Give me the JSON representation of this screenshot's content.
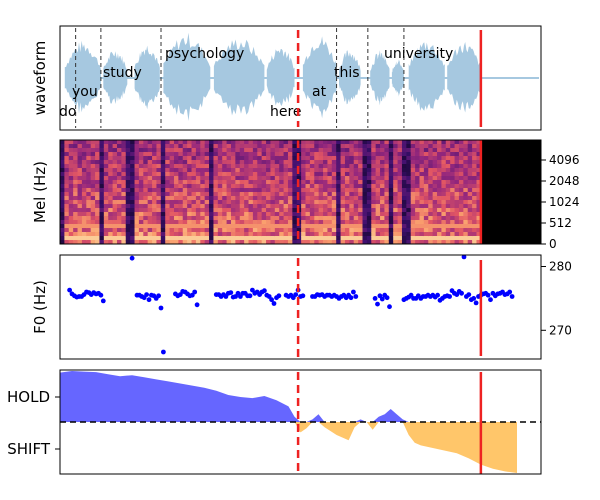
{
  "chart_data": [
    {
      "type": "area",
      "ylabel": "waveform",
      "x_range": [
        0,
        4.0
      ],
      "words": [
        {
          "text": "do",
          "start": 0.0,
          "end": 0.13
        },
        {
          "text": "you",
          "start": 0.13,
          "end": 0.34
        },
        {
          "text": "study",
          "start": 0.34,
          "end": 0.84
        },
        {
          "text": "psychology",
          "start": 0.84,
          "end": 1.98
        },
        {
          "text": "here",
          "start": 1.98,
          "end": 2.3
        },
        {
          "text": "at",
          "start": 2.3,
          "end": 2.56
        },
        {
          "text": "this",
          "start": 2.56,
          "end": 2.86
        },
        {
          "text": "university",
          "start": 2.86,
          "end": 3.5
        }
      ],
      "word_boundaries": [
        0.13,
        0.34,
        0.84,
        2.3,
        2.56,
        2.86
      ],
      "dashed_marker_x": 1.98,
      "solid_marker_x": 3.5,
      "color": "#a6c8e0"
    },
    {
      "type": "heatmap",
      "ylabel": "Mel (Hz)",
      "y_ticks": [
        "0",
        "512",
        "1024",
        "2048",
        "4096"
      ],
      "dashed_marker_x": 1.98,
      "solid_marker_x": 3.5
    },
    {
      "type": "scatter",
      "ylabel": "F0 (Hz)",
      "y_ticks": [
        270,
        280
      ],
      "ylim": [
        265.5,
        281.8
      ],
      "dashed_marker_x": 1.98,
      "solid_marker_x": 3.5,
      "color": "#0000ff",
      "points": [
        [
          0.08,
          276.3
        ],
        [
          0.1,
          275.7
        ],
        [
          0.12,
          275.4
        ],
        [
          0.14,
          275.2
        ],
        [
          0.16,
          275.3
        ],
        [
          0.18,
          275.3
        ],
        [
          0.2,
          275.6
        ],
        [
          0.22,
          276.0
        ],
        [
          0.24,
          275.9
        ],
        [
          0.26,
          275.6
        ],
        [
          0.28,
          275.9
        ],
        [
          0.3,
          275.7
        ],
        [
          0.32,
          275.8
        ],
        [
          0.34,
          275.5
        ],
        [
          0.36,
          274.6
        ],
        [
          0.6,
          281.3
        ],
        [
          0.64,
          275.5
        ],
        [
          0.66,
          275.5
        ],
        [
          0.68,
          275.3
        ],
        [
          0.7,
          275.1
        ],
        [
          0.72,
          275.6
        ],
        [
          0.74,
          274.8
        ],
        [
          0.76,
          275.5
        ],
        [
          0.78,
          275.4
        ],
        [
          0.8,
          275.0
        ],
        [
          0.82,
          275.4
        ],
        [
          0.84,
          273.5
        ],
        [
          0.86,
          266.6
        ],
        [
          0.96,
          275.7
        ],
        [
          0.98,
          275.4
        ],
        [
          1.0,
          275.6
        ],
        [
          1.02,
          276.1
        ],
        [
          1.04,
          276.0
        ],
        [
          1.06,
          275.7
        ],
        [
          1.08,
          275.4
        ],
        [
          1.1,
          275.5
        ],
        [
          1.12,
          276.0
        ],
        [
          1.14,
          274.0
        ],
        [
          1.3,
          275.6
        ],
        [
          1.32,
          275.6
        ],
        [
          1.34,
          275.3
        ],
        [
          1.36,
          275.6
        ],
        [
          1.38,
          275.3
        ],
        [
          1.4,
          275.8
        ],
        [
          1.42,
          275.9
        ],
        [
          1.44,
          275.2
        ],
        [
          1.46,
          275.3
        ],
        [
          1.48,
          275.8
        ],
        [
          1.5,
          275.3
        ],
        [
          1.52,
          275.8
        ],
        [
          1.54,
          275.8
        ],
        [
          1.56,
          275.4
        ],
        [
          1.58,
          275.4
        ],
        [
          1.6,
          276.3
        ],
        [
          1.62,
          275.8
        ],
        [
          1.64,
          276.0
        ],
        [
          1.66,
          275.6
        ],
        [
          1.68,
          276.0
        ],
        [
          1.7,
          276.2
        ],
        [
          1.72,
          275.5
        ],
        [
          1.74,
          275.3
        ],
        [
          1.76,
          274.8
        ],
        [
          1.78,
          274.2
        ],
        [
          1.8,
          275.1
        ],
        [
          1.82,
          275.4
        ],
        [
          1.88,
          275.5
        ],
        [
          1.9,
          275.3
        ],
        [
          1.92,
          275.5
        ],
        [
          1.94,
          275.1
        ],
        [
          1.96,
          275.6
        ],
        [
          1.98,
          276.3
        ],
        [
          2.0,
          275.3
        ],
        [
          2.02,
          275.4
        ],
        [
          2.1,
          275.3
        ],
        [
          2.12,
          275.3
        ],
        [
          2.14,
          275.6
        ],
        [
          2.16,
          275.5
        ],
        [
          2.18,
          275.6
        ],
        [
          2.2,
          275.3
        ],
        [
          2.22,
          275.5
        ],
        [
          2.24,
          275.5
        ],
        [
          2.26,
          275.3
        ],
        [
          2.28,
          275.5
        ],
        [
          2.3,
          275.3
        ],
        [
          2.32,
          275.0
        ],
        [
          2.34,
          275.3
        ],
        [
          2.36,
          275.5
        ],
        [
          2.38,
          275.1
        ],
        [
          2.4,
          275.5
        ],
        [
          2.42,
          275.1
        ],
        [
          2.44,
          276.0
        ],
        [
          2.46,
          275.3
        ],
        [
          2.62,
          275.0
        ],
        [
          2.64,
          274.1
        ],
        [
          2.66,
          275.4
        ],
        [
          2.68,
          274.9
        ],
        [
          2.7,
          275.5
        ],
        [
          2.72,
          275.1
        ],
        [
          2.74,
          273.7
        ],
        [
          2.86,
          274.8
        ],
        [
          2.88,
          275.0
        ],
        [
          2.9,
          275.2
        ],
        [
          2.92,
          275.5
        ],
        [
          2.94,
          275.0
        ],
        [
          2.96,
          275.0
        ],
        [
          2.98,
          275.4
        ],
        [
          3.0,
          275.0
        ],
        [
          3.02,
          275.3
        ],
        [
          3.04,
          275.3
        ],
        [
          3.06,
          275.5
        ],
        [
          3.08,
          275.3
        ],
        [
          3.1,
          275.5
        ],
        [
          3.12,
          275.2
        ],
        [
          3.14,
          275.5
        ],
        [
          3.16,
          274.7
        ],
        [
          3.18,
          275.0
        ],
        [
          3.2,
          275.3
        ],
        [
          3.22,
          275.4
        ],
        [
          3.24,
          275.3
        ],
        [
          3.26,
          276.2
        ],
        [
          3.28,
          275.8
        ],
        [
          3.3,
          275.6
        ],
        [
          3.32,
          276.1
        ],
        [
          3.34,
          275.8
        ],
        [
          3.36,
          281.5
        ],
        [
          3.38,
          275.3
        ],
        [
          3.4,
          275.6
        ],
        [
          3.42,
          274.8
        ],
        [
          3.44,
          275.0
        ],
        [
          3.46,
          274.3
        ],
        [
          3.48,
          275.3
        ],
        [
          3.5,
          275.5
        ],
        [
          3.52,
          275.7
        ],
        [
          3.54,
          275.8
        ],
        [
          3.56,
          275.5
        ],
        [
          3.58,
          274.8
        ],
        [
          3.6,
          275.8
        ],
        [
          3.62,
          275.4
        ],
        [
          3.64,
          275.7
        ],
        [
          3.66,
          275.8
        ],
        [
          3.68,
          276.0
        ],
        [
          3.7,
          275.6
        ],
        [
          3.72,
          275.7
        ],
        [
          3.74,
          276.0
        ],
        [
          3.76,
          275.3
        ]
      ]
    },
    {
      "type": "area",
      "y_tick_labels": [
        "HOLD",
        "SHIFT"
      ],
      "ylim": [
        -1.0,
        1.0
      ],
      "threshold": 0,
      "dashed_marker_x": 1.98,
      "solid_marker_x": 3.5,
      "hold_color": "#6666ff",
      "shift_color": "#ffc66a",
      "series": [
        [
          0.0,
          0.95
        ],
        [
          0.1,
          0.98
        ],
        [
          0.2,
          0.97
        ],
        [
          0.3,
          0.96
        ],
        [
          0.4,
          0.92
        ],
        [
          0.5,
          0.88
        ],
        [
          0.6,
          0.9
        ],
        [
          0.7,
          0.86
        ],
        [
          0.8,
          0.82
        ],
        [
          0.9,
          0.78
        ],
        [
          1.0,
          0.74
        ],
        [
          1.1,
          0.7
        ],
        [
          1.2,
          0.66
        ],
        [
          1.3,
          0.6
        ],
        [
          1.4,
          0.52
        ],
        [
          1.5,
          0.48
        ],
        [
          1.6,
          0.46
        ],
        [
          1.7,
          0.5
        ],
        [
          1.8,
          0.42
        ],
        [
          1.9,
          0.3
        ],
        [
          1.95,
          0.1
        ],
        [
          2.0,
          -0.2
        ],
        [
          2.05,
          -0.12
        ],
        [
          2.1,
          0.05
        ],
        [
          2.15,
          0.15
        ],
        [
          2.2,
          -0.1
        ],
        [
          2.3,
          -0.25
        ],
        [
          2.4,
          -0.35
        ],
        [
          2.45,
          -0.1
        ],
        [
          2.5,
          0.05
        ],
        [
          2.55,
          0.0
        ],
        [
          2.6,
          -0.15
        ],
        [
          2.65,
          0.1
        ],
        [
          2.7,
          0.15
        ],
        [
          2.75,
          0.25
        ],
        [
          2.8,
          0.15
        ],
        [
          2.85,
          0.05
        ],
        [
          2.9,
          -0.25
        ],
        [
          2.95,
          -0.4
        ],
        [
          3.0,
          -0.45
        ],
        [
          3.1,
          -0.5
        ],
        [
          3.2,
          -0.55
        ],
        [
          3.3,
          -0.6
        ],
        [
          3.4,
          -0.7
        ],
        [
          3.5,
          -0.82
        ],
        [
          3.6,
          -0.9
        ],
        [
          3.7,
          -0.95
        ],
        [
          3.8,
          -0.98
        ]
      ]
    }
  ]
}
